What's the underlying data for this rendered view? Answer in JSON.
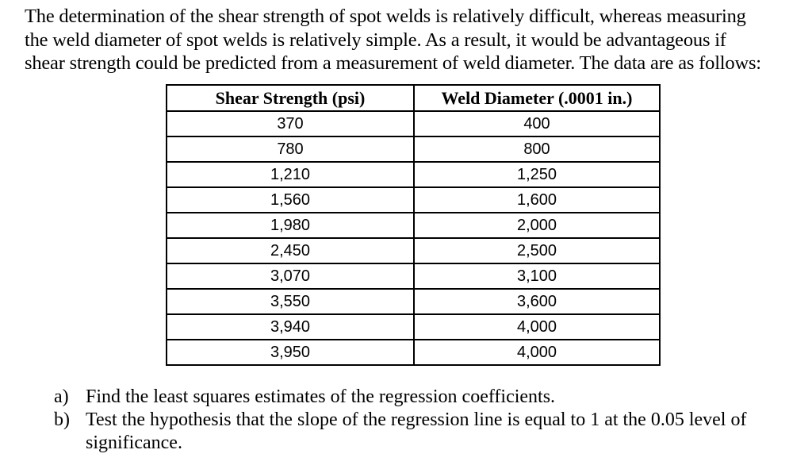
{
  "intro": {
    "lines": [
      "The determination of the shear strength of spot welds is relatively difficult, whereas measuring",
      "the weld diameter of spot welds is relatively simple. As a result, it would be advantageous if",
      "shear strength could be predicted from a measurement of weld diameter. The data are as follows:"
    ]
  },
  "table": {
    "headers": [
      "Shear Strength (psi)",
      "Weld Diameter (.0001 in.)"
    ],
    "rows": [
      [
        "370",
        "400"
      ],
      [
        "780",
        "800"
      ],
      [
        "1,210",
        "1,250"
      ],
      [
        "1,560",
        "1,600"
      ],
      [
        "1,980",
        "2,000"
      ],
      [
        "2,450",
        "2,500"
      ],
      [
        "3,070",
        "3,100"
      ],
      [
        "3,550",
        "3,600"
      ],
      [
        "3,940",
        "4,000"
      ],
      [
        "3,950",
        "4,000"
      ]
    ]
  },
  "questions": [
    {
      "marker": "a)",
      "text": "Find the least squares estimates of the regression coefficients."
    },
    {
      "marker": "b)",
      "text": "Test the hypothesis that the slope of the regression line is equal to 1 at the 0.05 level of significance."
    }
  ]
}
